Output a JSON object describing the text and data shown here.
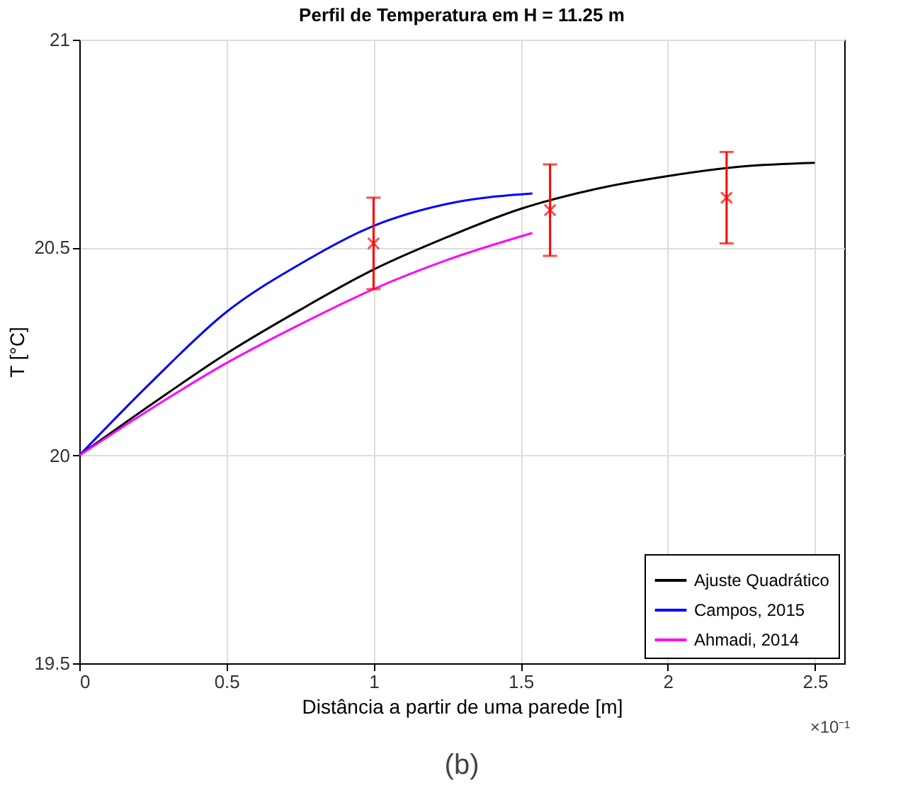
{
  "chart_data": {
    "type": "line",
    "title": "Perfil de Temperatura em H = 11.25 m",
    "xlabel": "Distância a partir de uma parede [m]",
    "ylabel": "T [°C]",
    "xlim": [
      0,
      2.6
    ],
    "xticks": [
      0,
      0.5,
      1,
      1.5,
      2,
      2.5
    ],
    "ylim": [
      19.5,
      21
    ],
    "yticks": [
      19.5,
      20,
      20.5,
      21
    ],
    "grid": true,
    "legend": "bottom right",
    "series": [
      {
        "name": "Ajuste Quadrático",
        "color": "#000000",
        "x": [
          0,
          0.25,
          0.5,
          0.75,
          1,
          1.25,
          1.5,
          1.75,
          2,
          2.25,
          2.5
        ],
        "values": [
          20,
          20.125,
          20.245,
          20.35,
          20.447,
          20.525,
          20.593,
          20.64,
          20.672,
          20.695,
          20.704
        ]
      },
      {
        "name": "Campos, 2015",
        "color": "#0000ff",
        "x": [
          0,
          0.25,
          0.5,
          0.75,
          1,
          1.25,
          1.54
        ],
        "values": [
          20,
          20.18,
          20.345,
          20.46,
          20.552,
          20.605,
          20.63
        ]
      },
      {
        "name": "Ahmadi, 2014",
        "color": "#ff00ff",
        "x": [
          0,
          0.25,
          0.5,
          0.75,
          1,
          1.25,
          1.54
        ],
        "values": [
          20,
          20.115,
          20.222,
          20.315,
          20.4,
          20.47,
          20.535
        ]
      },
      {
        "color": "#ff0000",
        "type": "scatter",
        "marker": "cross",
        "x": [
          1,
          1.6,
          2.2
        ],
        "values": [
          20.51,
          20.59,
          20.62
        ],
        "errors": [
          [
            20.4,
            20.62
          ],
          [
            20.48,
            20.7
          ],
          [
            20.51,
            20.73
          ]
        ]
      }
    ],
    "annotations": [
      "×10⁻¹",
      "(b)"
    ]
  }
}
